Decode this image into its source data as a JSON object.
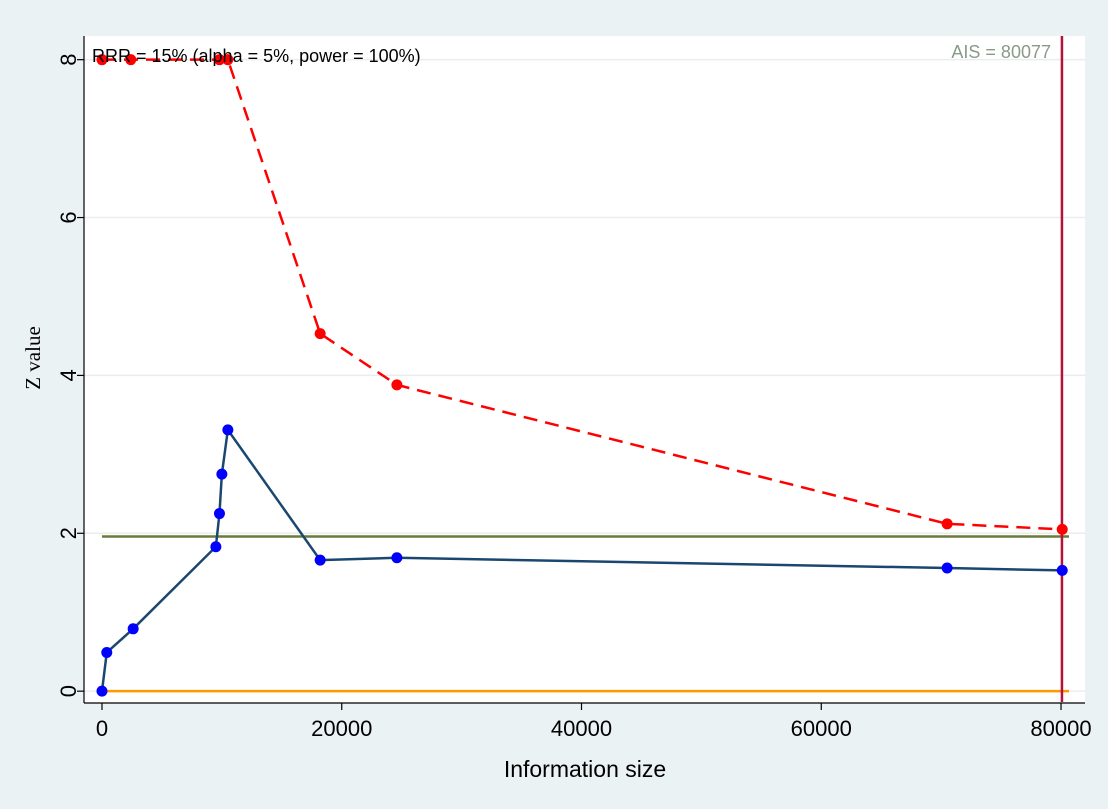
{
  "chart_data": {
    "type": "line",
    "annotation": "RRR = 15% (alpha = 5%, power = 100%)",
    "ais_label": "AIS = 80077",
    "ais_value": 80077,
    "xlabel": "Information size",
    "ylabel": "Z value",
    "xlim": [
      -1500,
      82000
    ],
    "ylim": [
      -0.15,
      8.3
    ],
    "xticks": [
      0,
      20000,
      40000,
      60000,
      80000
    ],
    "xtick_labels": [
      "0",
      "20000",
      "40000",
      "60000",
      "80000"
    ],
    "yticks": [
      0,
      2,
      4,
      6,
      8
    ],
    "ytick_labels": [
      "0",
      "2",
      "4",
      "6",
      "8"
    ],
    "grid": true,
    "series": [
      {
        "role": "boundary",
        "color": "#ff0000",
        "x": [
          0,
          2400,
          9800,
          10500,
          18200,
          24600,
          70500,
          80100
        ],
        "y": [
          8,
          8,
          8,
          8,
          4.53,
          3.88,
          2.12,
          2.05
        ]
      },
      {
        "role": "cumulative",
        "color": "#1a476f",
        "marker_color": "#0000ff",
        "x": [
          0,
          400,
          2600,
          9500,
          9800,
          10000,
          10500,
          18200,
          24600,
          70500,
          80100
        ],
        "y": [
          0,
          0.49,
          0.79,
          1.83,
          2.25,
          2.75,
          3.31,
          1.66,
          1.69,
          1.56,
          1.53
        ]
      }
    ],
    "reference_lines": [
      {
        "orientation": "horizontal",
        "value": 1.96,
        "color": "#6b7a3c"
      },
      {
        "orientation": "horizontal",
        "value": 0,
        "color": "#ff9900"
      },
      {
        "orientation": "vertical",
        "value": 80077,
        "color": "#b5123a"
      }
    ]
  }
}
